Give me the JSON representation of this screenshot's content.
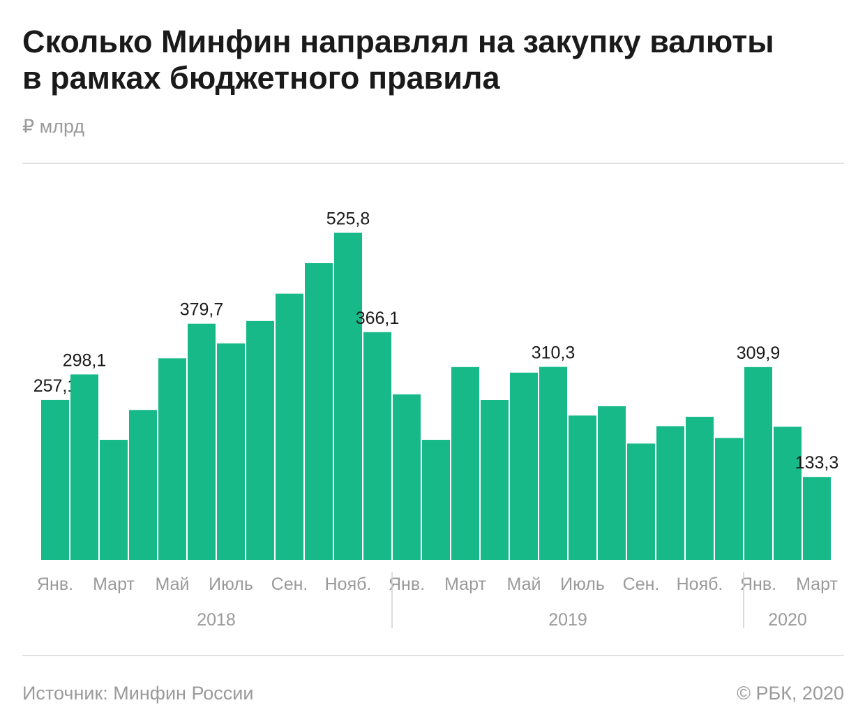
{
  "header": {
    "title_line1": "Сколько Минфин направлял на закупку валюты",
    "title_line2": "в рамках бюджетного правила",
    "unit": "₽ млрд"
  },
  "footer": {
    "source": "Источник: Минфин России",
    "copyright": "© РБК, 2020"
  },
  "colors": {
    "bar": "#17b988",
    "text": "#1a1a1a",
    "muted": "#9a9a9a",
    "divider": "#cfcfcf"
  },
  "chart_data": {
    "type": "bar",
    "title": "Сколько Минфин направлял на закупку валюты в рамках бюджетного правила",
    "ylabel": "₽ млрд",
    "ylim": [
      0,
      560
    ],
    "grid": false,
    "values": [
      257.1,
      298.1,
      193,
      241,
      324,
      379.7,
      348,
      384,
      428,
      477,
      525.8,
      366.1,
      266,
      193,
      310,
      257,
      301,
      310.3,
      232,
      247,
      187,
      215,
      230,
      196,
      309.9,
      214,
      133.3
    ],
    "value_labels": [
      "257,1",
      "298,1",
      "",
      "",
      "",
      "379,7",
      "",
      "",
      "",
      "",
      "525,8",
      "366,1",
      "",
      "",
      "",
      "",
      "",
      "310,3",
      "",
      "",
      "",
      "",
      "",
      "",
      "309,9",
      "",
      "133,3"
    ],
    "tick_labels": [
      {
        "index": 0,
        "text": "Янв."
      },
      {
        "index": 2,
        "text": "Март"
      },
      {
        "index": 4,
        "text": "Май"
      },
      {
        "index": 6,
        "text": "Июль"
      },
      {
        "index": 8,
        "text": "Сен."
      },
      {
        "index": 10,
        "text": "Нояб."
      },
      {
        "index": 12,
        "text": "Янв."
      },
      {
        "index": 14,
        "text": "Март"
      },
      {
        "index": 16,
        "text": "Май"
      },
      {
        "index": 18,
        "text": "Июль"
      },
      {
        "index": 20,
        "text": "Сен."
      },
      {
        "index": 22,
        "text": "Нояб."
      },
      {
        "index": 24,
        "text": "Янв."
      },
      {
        "index": 26,
        "text": "Март"
      }
    ],
    "years": [
      {
        "label": "2018",
        "start": 0,
        "end": 11
      },
      {
        "label": "2019",
        "start": 12,
        "end": 23
      },
      {
        "label": "2020",
        "start": 24,
        "end": 26
      }
    ]
  }
}
